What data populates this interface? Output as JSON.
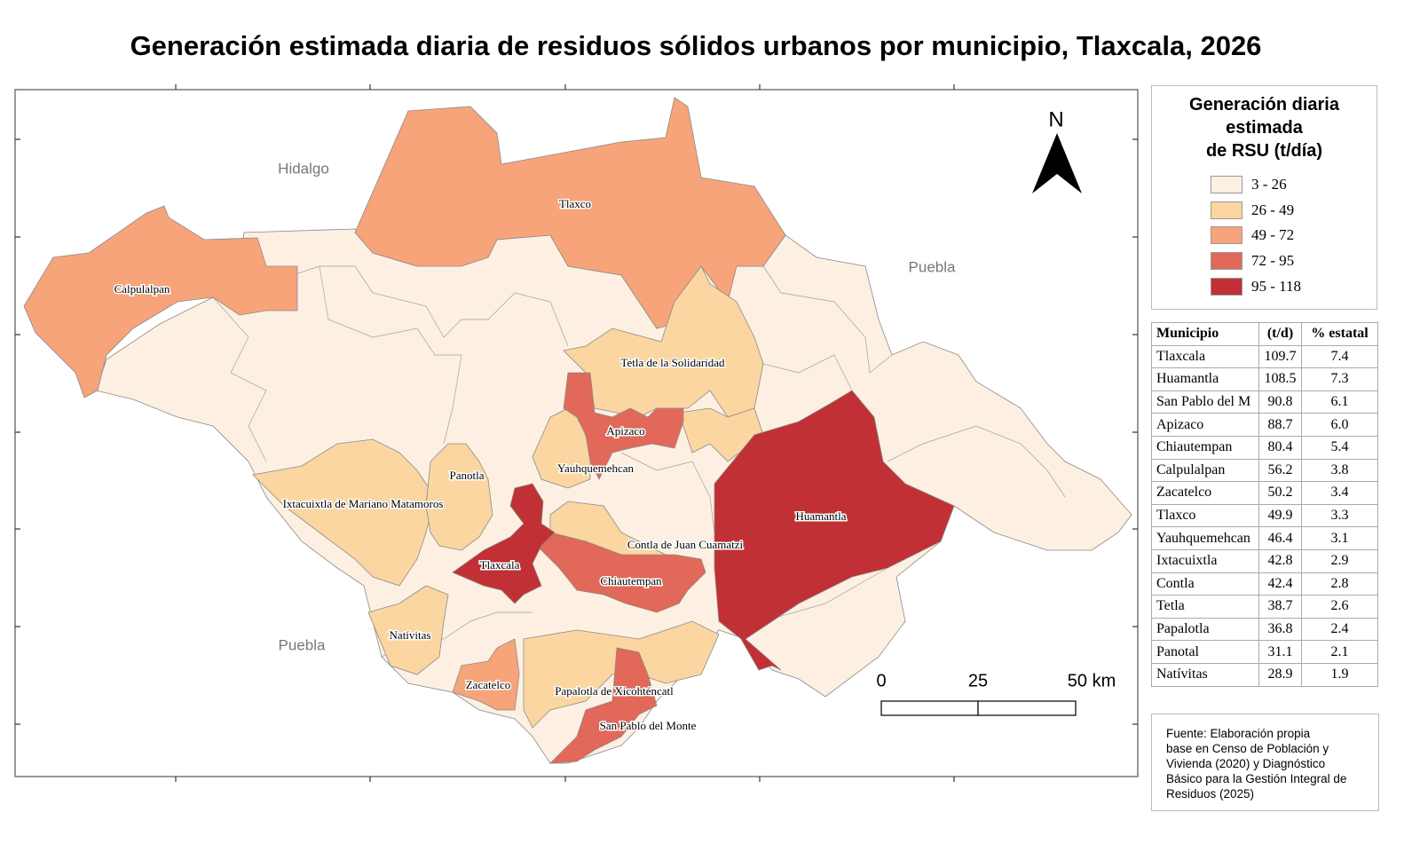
{
  "title": "Generación estimada diaria de residuos sólidos urbanos por municipio, Tlaxcala, 2026",
  "map": {
    "regions": [
      "Hidalgo",
      "Puebla",
      "Puebla"
    ],
    "labels": [
      "Tlaxco",
      "Calpulalpan",
      "Tetla de la Solidaridad",
      "Apizaco",
      "Yauhquemehcan",
      "Panotla",
      "Ixtacuixtla de Mariano Matamoros",
      "Huamantla",
      "Contla de Juan Cuamatzi",
      "Tlaxcala",
      "Chiautempan",
      "Natívitas",
      "Zacatelco",
      "Papalotla de Xicohténcatl",
      "San Pablo del Monte"
    ],
    "north": "N",
    "scale": [
      "0",
      "25",
      "50 km"
    ]
  },
  "legend": {
    "title": [
      "Generación diaria",
      "estimada",
      "de RSU (t/día)"
    ],
    "classes": [
      {
        "label": "3 - 26",
        "color": "#fdf0e2"
      },
      {
        "label": "26 - 49",
        "color": "#fbd6a1"
      },
      {
        "label": "49 - 72",
        "color": "#f7a47b"
      },
      {
        "label": "72 - 95",
        "color": "#e2685a"
      },
      {
        "label": "95 - 118",
        "color": "#c13034"
      }
    ]
  },
  "table": {
    "header": [
      "Municipio",
      "(t/d)",
      "% estatal"
    ],
    "rows": [
      [
        "Tlaxcala",
        "109.7",
        "7.4"
      ],
      [
        "Huamantla",
        "108.5",
        "7.3"
      ],
      [
        "San Pablo del M",
        "90.8",
        "6.1"
      ],
      [
        "Apizaco",
        "88.7",
        "6.0"
      ],
      [
        "Chiautempan",
        "80.4",
        "5.4"
      ],
      [
        "Calpulalpan",
        "56.2",
        "3.8"
      ],
      [
        "Zacatelco",
        "50.2",
        "3.4"
      ],
      [
        "Tlaxco",
        "49.9",
        "3.3"
      ],
      [
        "Yauhquemehcan",
        "46.4",
        "3.1"
      ],
      [
        "Ixtacuixtla",
        "42.8",
        "2.9"
      ],
      [
        "Contla",
        "42.4",
        "2.8"
      ],
      [
        "Tetla",
        "38.7",
        "2.6"
      ],
      [
        "Papalotla",
        "36.8",
        "2.4"
      ],
      [
        "Panotal",
        "31.1",
        "2.1"
      ],
      [
        "Natívitas",
        "28.9",
        "1.9"
      ]
    ]
  },
  "source": [
    "Fuente: Elaboración propia",
    "base en Censo de Población y",
    "Vivienda (2020) y Diagnóstico",
    "Básico para la Gestión Integral de",
    "Residuos (2025)"
  ]
}
